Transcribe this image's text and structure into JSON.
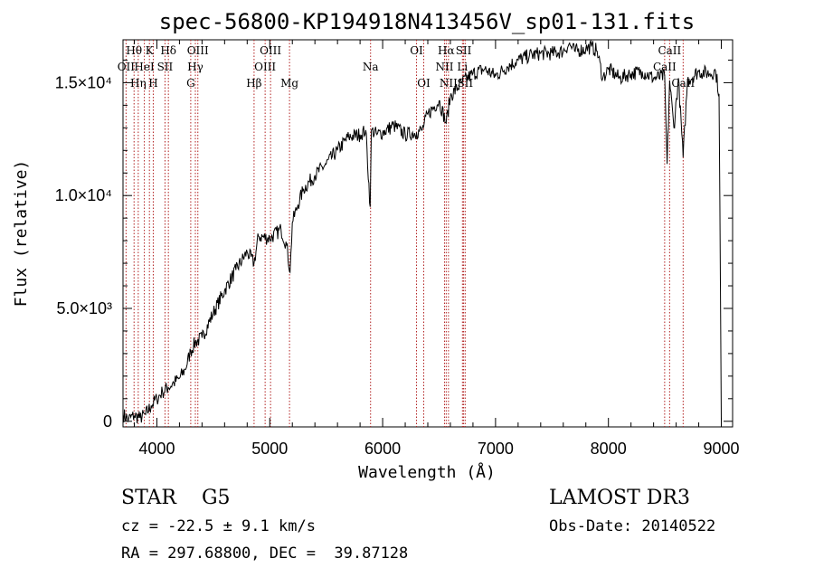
{
  "chart_data": {
    "type": "line",
    "title": "spec-56800-KP194918N413456V_sp01-131.fits",
    "xlabel": "Wavelength (Å)",
    "ylabel": "Flux (relative)",
    "xlim": [
      3700,
      9100
    ],
    "ylim": [
      -250,
      16900
    ],
    "x_ticks": [
      4000,
      5000,
      6000,
      7000,
      8000,
      9000
    ],
    "x_tick_labels": [
      "4000",
      "5000",
      "6000",
      "7000",
      "8000",
      "9000"
    ],
    "y_ticks": [
      0,
      5000,
      10000,
      15000
    ],
    "y_tick_labels": [
      "0",
      "5.0×10³",
      "1.0×10⁴",
      "1.5×10⁴"
    ],
    "series": [
      {
        "name": "spectrum",
        "color": "#000000",
        "x": [
          3700,
          3750,
          3800,
          3850,
          3900,
          3950,
          4000,
          4050,
          4100,
          4150,
          4200,
          4250,
          4300,
          4340,
          4400,
          4500,
          4600,
          4700,
          4800,
          4861,
          4900,
          5000,
          5100,
          5150,
          5180,
          5200,
          5250,
          5300,
          5400,
          5500,
          5600,
          5700,
          5800,
          5850,
          5890,
          5900,
          5950,
          6000,
          6100,
          6200,
          6300,
          6350,
          6400,
          6500,
          6563,
          6600,
          6700,
          6800,
          6900,
          7000,
          7100,
          7200,
          7300,
          7400,
          7500,
          7600,
          7650,
          7700,
          7800,
          7850,
          7900,
          7950,
          8000,
          8100,
          8200,
          8300,
          8400,
          8498,
          8520,
          8542,
          8580,
          8620,
          8662,
          8700,
          8800,
          8900,
          8950,
          8980,
          9000
        ],
        "y": [
          300,
          100,
          250,
          150,
          300,
          700,
          1000,
          1300,
          1500,
          1700,
          1900,
          2300,
          3100,
          3500,
          3700,
          4800,
          5800,
          6700,
          7500,
          7000,
          8200,
          8100,
          8500,
          7800,
          6600,
          8800,
          9600,
          10300,
          10900,
          11400,
          12000,
          12600,
          12700,
          12900,
          9500,
          12900,
          12700,
          12800,
          13100,
          12700,
          12800,
          12900,
          13600,
          14200,
          13200,
          14400,
          15000,
          15400,
          15600,
          15300,
          15700,
          16000,
          16200,
          16300,
          16300,
          16400,
          16700,
          16400,
          16500,
          16600,
          16400,
          15200,
          15600,
          15200,
          15400,
          15500,
          15200,
          15300,
          11400,
          15100,
          13000,
          15200,
          11700,
          15100,
          15500,
          15400,
          15500,
          14500,
          0
        ]
      }
    ],
    "emission_lines": [
      {
        "wave": 3798,
        "label": "Hθ",
        "row": 0
      },
      {
        "wave": 3727,
        "label": "OII",
        "row": 1
      },
      {
        "wave": 3835,
        "label": "Hη",
        "row": 2
      },
      {
        "wave": 3889,
        "label": "HeI",
        "row": 1
      },
      {
        "wave": 3934,
        "label": "K",
        "row": 0
      },
      {
        "wave": 3968,
        "label": "H",
        "row": 2
      },
      {
        "wave": 4072,
        "label": "SII",
        "row": 1
      },
      {
        "wave": 4102,
        "label": "Hδ",
        "row": 0
      },
      {
        "wave": 4300,
        "label": "G",
        "row": 2
      },
      {
        "wave": 4341,
        "label": "Hγ",
        "row": 1
      },
      {
        "wave": 4363,
        "label": "OIII",
        "row": 0
      },
      {
        "wave": 4861,
        "label": "Hβ",
        "row": 2
      },
      {
        "wave": 4959,
        "label": "OIII",
        "row": 1
      },
      {
        "wave": 5007,
        "label": "OIII",
        "row": 0
      },
      {
        "wave": 5175,
        "label": "Mg",
        "row": 2
      },
      {
        "wave": 5893,
        "label": "Na",
        "row": 1
      },
      {
        "wave": 6300,
        "label": "OI",
        "row": 0
      },
      {
        "wave": 6364,
        "label": "OI",
        "row": 2
      },
      {
        "wave": 6548,
        "label": "NII",
        "row": 1
      },
      {
        "wave": 6563,
        "label": "Hα",
        "row": 0
      },
      {
        "wave": 6583,
        "label": "NII",
        "row": 2
      },
      {
        "wave": 6707,
        "label": "Li",
        "row": 1
      },
      {
        "wave": 6717,
        "label": "SII",
        "row": 0
      },
      {
        "wave": 6731,
        "label": "SII",
        "row": 2
      },
      {
        "wave": 8498,
        "label": "CaII",
        "row": 1
      },
      {
        "wave": 8542,
        "label": "CaII",
        "row": 0
      },
      {
        "wave": 8662,
        "label": "CaII",
        "row": 2
      }
    ]
  },
  "info": {
    "class_line": "STAR    G5",
    "survey": "LAMOST DR3",
    "cz": "cz = -22.5 ± 9.1 km/s",
    "obs_date": "Obs-Date: 20140522",
    "coords": "RA = 297.68800, DEC =  39.87128"
  }
}
